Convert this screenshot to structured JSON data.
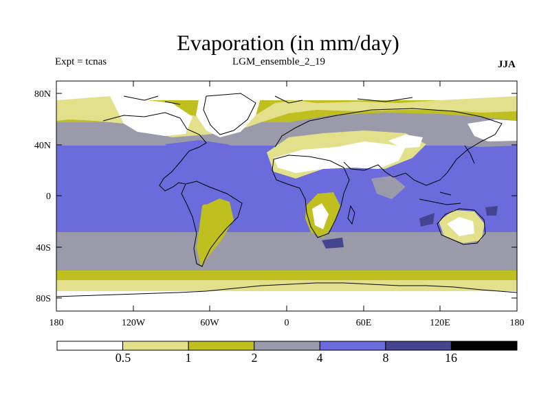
{
  "title": "Evaporation (in mm/day)",
  "subtitle_left": "Expt = tcnas",
  "subtitle_center": "LGM_ensemble_2_19",
  "subtitle_right": "JJA",
  "map": {
    "projection": "equirectangular",
    "lon_range": [
      -180,
      180
    ],
    "lat_range": [
      -90,
      90
    ],
    "y_tick_labels": [
      "80N",
      "40N",
      "0",
      "40S",
      "80S"
    ],
    "x_tick_labels": [
      "180",
      "120W",
      "60W",
      "0",
      "60E",
      "120E",
      "180"
    ]
  },
  "colorbar": {
    "colors": [
      "#ffffff",
      "#e3e08c",
      "#bfbf1f",
      "#9a9aab",
      "#6b6bdc",
      "#45458f",
      "#000000"
    ],
    "labels": [
      "0.5",
      "1",
      "2",
      "4",
      "8",
      "16"
    ]
  },
  "chart_data": {
    "type": "heatmap",
    "title": "Evaporation (in mm/day)",
    "variable": "Evaporation",
    "units": "mm/day",
    "experiment": "tcnas",
    "run": "LGM_ensemble_2_19",
    "season": "JJA",
    "contour_levels": [
      0.5,
      1,
      2,
      4,
      8,
      16
    ],
    "xlim": [
      -180,
      180
    ],
    "ylim": [
      -90,
      90
    ],
    "bands": [
      {
        "lat_from": 90,
        "lat_to": 75,
        "value_class": "0-0.5"
      },
      {
        "lat_from": 75,
        "lat_to": 58,
        "value_class": "1-2"
      },
      {
        "lat_from": 58,
        "lat_to": 40,
        "value_class": "2-4"
      },
      {
        "lat_from": 40,
        "lat_to": -28,
        "value_class": "4-8"
      },
      {
        "lat_from": -28,
        "lat_to": -58,
        "value_class": "2-4"
      },
      {
        "lat_from": -58,
        "lat_to": -66,
        "value_class": "1-2"
      },
      {
        "lat_from": -66,
        "lat_to": -74,
        "value_class": "0.5-1"
      },
      {
        "lat_from": -74,
        "lat_to": -90,
        "value_class": "0-0.5"
      }
    ]
  }
}
